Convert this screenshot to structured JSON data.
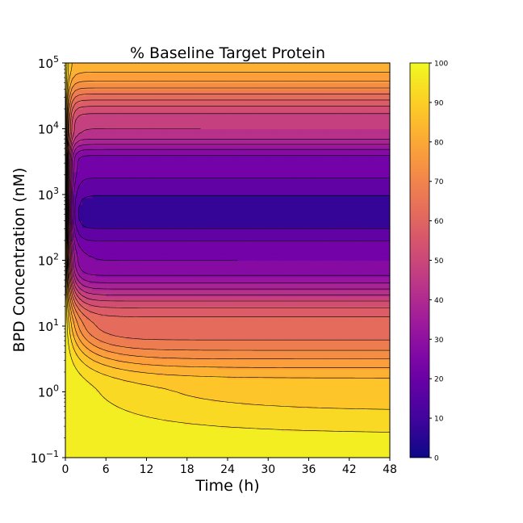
{
  "chart_data": {
    "type": "heatmap",
    "subtype": "filled-contour",
    "title": "% Baseline Target Protein",
    "xlabel": "Time (h)",
    "ylabel": "BPD Concentration (nM)",
    "x_ticks": [
      "0",
      "6",
      "12",
      "18",
      "24",
      "30",
      "36",
      "42",
      "48"
    ],
    "x_tick_values": [
      0,
      6,
      12,
      18,
      24,
      30,
      36,
      42,
      48
    ],
    "xlim": [
      0,
      48
    ],
    "y_scale": "log",
    "y_ticks": [
      {
        "base": "10",
        "exp": "−1",
        "value": 0.1
      },
      {
        "base": "10",
        "exp": "0",
        "value": 1
      },
      {
        "base": "10",
        "exp": "1",
        "value": 10
      },
      {
        "base": "10",
        "exp": "2",
        "value": 100
      },
      {
        "base": "10",
        "exp": "3",
        "value": 1000
      },
      {
        "base": "10",
        "exp": "4",
        "value": 10000
      },
      {
        "base": "10",
        "exp": "5",
        "value": 100000
      }
    ],
    "ylim": [
      0.1,
      100000
    ],
    "colormap": "plasma",
    "colorbar": {
      "range": [
        0,
        100
      ],
      "ticks": [
        "0",
        "10",
        "20",
        "30",
        "40",
        "50",
        "60",
        "70",
        "80",
        "90",
        "100"
      ],
      "tick_values": [
        0,
        10,
        20,
        30,
        40,
        50,
        60,
        70,
        80,
        90,
        100
      ]
    },
    "contour_levels": [
      15,
      20,
      25,
      30,
      35,
      40,
      45,
      50,
      55,
      60,
      65,
      70,
      75,
      80,
      85,
      90,
      95
    ],
    "approximate_minimum": {
      "value": 12,
      "time_h": 48,
      "concentration_nM": 500
    },
    "description_values": {
      "steady_state_profile_at_48h": [
        {
          "concentration_nM": 0.1,
          "percent": 98
        },
        {
          "concentration_nM": 1,
          "percent": 88
        },
        {
          "concentration_nM": 10,
          "percent": 62
        },
        {
          "concentration_nM": 100,
          "percent": 25
        },
        {
          "concentration_nM": 500,
          "percent": 12
        },
        {
          "concentration_nM": 3000,
          "percent": 22
        },
        {
          "concentration_nM": 10000,
          "percent": 45
        },
        {
          "concentration_nM": 100000,
          "percent": 82
        }
      ]
    }
  }
}
